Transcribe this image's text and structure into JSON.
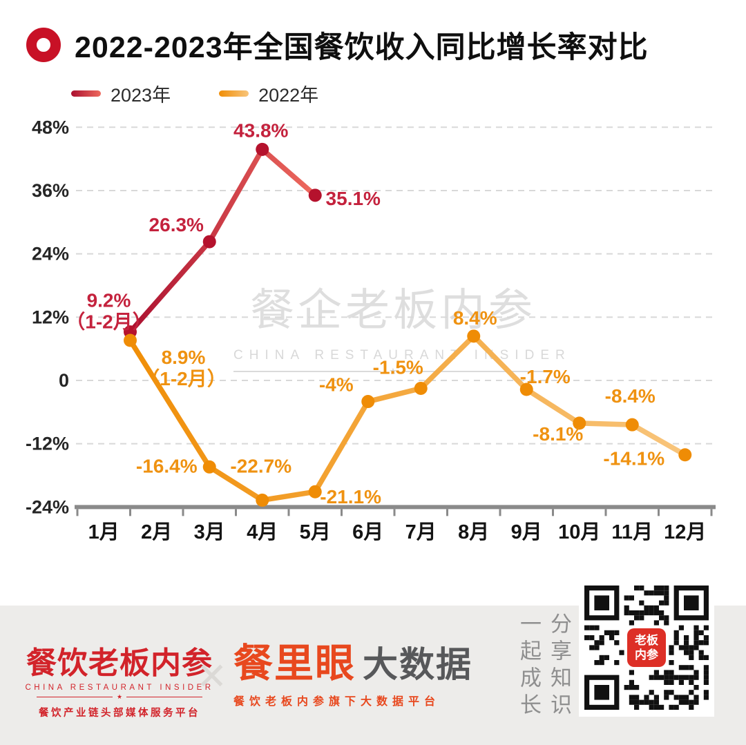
{
  "header": {
    "title": "2022-2023年全国餐饮收入同比增长率对比"
  },
  "chart_data": {
    "type": "line",
    "title": "2022-2023年全国餐饮收入同比增长率对比",
    "x_categories": [
      "1月",
      "2月",
      "3月",
      "4月",
      "5月",
      "6月",
      "7月",
      "8月",
      "9月",
      "10月",
      "11月",
      "12月"
    ],
    "y_ticks": [
      {
        "label": "48%",
        "value": 48
      },
      {
        "label": "36%",
        "value": 36
      },
      {
        "label": "24%",
        "value": 24
      },
      {
        "label": "12%",
        "value": 12
      },
      {
        "label": "0",
        "value": 0
      },
      {
        "label": "-12%",
        "value": -12
      },
      {
        "label": "-24%",
        "value": -24
      }
    ],
    "ylim": [
      -24,
      48
    ],
    "grid": "horizontal-dashed",
    "legend_position": "top-left",
    "series": [
      {
        "name": "2023年",
        "line_color_start": "#ab1030",
        "line_color_end": "#ee6a5e",
        "point_color": "#b5122d",
        "label_color": "#c4223d",
        "points": [
          {
            "month": "1-2月",
            "value": 9.2,
            "label": "9.2%",
            "sublabel": "（1-2月）"
          },
          {
            "month": "3月",
            "value": 26.3,
            "label": "26.3%"
          },
          {
            "month": "4月",
            "value": 43.8,
            "label": "43.8%"
          },
          {
            "month": "5月",
            "value": 35.1,
            "label": "35.1%"
          }
        ]
      },
      {
        "name": "2022年",
        "line_color_start": "#f08e07",
        "line_color_end": "#f8c57c",
        "point_color": "#ef8c05",
        "label_color": "#ef9211",
        "points": [
          {
            "month": "1-2月",
            "value": 8.9,
            "label": "8.9%",
            "sublabel": "（1-2月）"
          },
          {
            "month": "3月",
            "value": -16.4,
            "label": "-16.4%"
          },
          {
            "month": "4月",
            "value": -22.7,
            "label": "-22.7%"
          },
          {
            "month": "5月",
            "value": -21.1,
            "label": "-21.1%"
          },
          {
            "month": "6月",
            "value": -4,
            "label": "-4%"
          },
          {
            "month": "7月",
            "value": -1.5,
            "label": "-1.5%"
          },
          {
            "month": "8月",
            "value": 8.4,
            "label": "8.4%"
          },
          {
            "month": "9月",
            "value": -1.7,
            "label": "-1.7%"
          },
          {
            "month": "10月",
            "value": -8.1,
            "label": "-8.1%"
          },
          {
            "month": "11月",
            "value": -8.4,
            "label": "-8.4%"
          },
          {
            "month": "12月",
            "value": -14.1,
            "label": "-14.1%"
          }
        ]
      }
    ]
  },
  "watermark": {
    "main": "餐企老板内参",
    "sub": "CHINA RESTAURANT INSIDER",
    "star": "★"
  },
  "footer": {
    "left_logo": {
      "main": "餐饮老板内参",
      "sub": "CHINA RESTAURANT INSIDER",
      "star": "★",
      "tagline": "餐饮产业链头部媒体服务平台"
    },
    "separator": "✕",
    "center_logo": {
      "brand": "餐里眼",
      "suffix": "大数据",
      "tagline": "餐饮老板内参旗下大数据平台"
    },
    "vertical_slogan": {
      "left_column": "一起成长",
      "right_column": "分享知识"
    },
    "qr_badge": {
      "line1": "老板",
      "line2": "内参"
    }
  },
  "colors": {
    "axis": "#8a8a8a",
    "grid": "#d8d8d8",
    "tick_text": "#262626",
    "footer_bg": "#edecea",
    "footer_red": "#d2232a",
    "footer_orange": "#e8481e",
    "footer_dark": "#57585a",
    "watermark": "#dcdcdc",
    "ring_red": "#c81126"
  }
}
